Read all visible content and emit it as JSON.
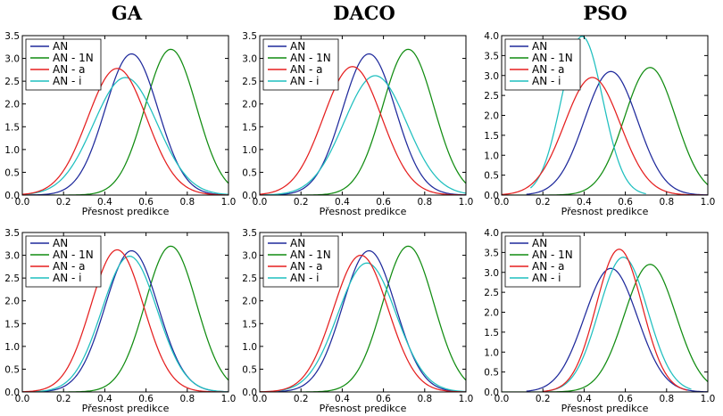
{
  "figure": {
    "column_titles": [
      "GA",
      "DACO",
      "PSO"
    ]
  },
  "chart_data": [
    {
      "type": "line",
      "column": 0,
      "row": 0,
      "xlabel": "Přesnost predikce",
      "xlim": [
        0.0,
        1.0
      ],
      "ylim": [
        0.0,
        3.5
      ],
      "xticks": [
        "0.0",
        "0.2",
        "0.4",
        "0.6",
        "0.8",
        "1.0"
      ],
      "yticks": [
        "0.0",
        "0.5",
        "1.0",
        "1.5",
        "2.0",
        "2.5",
        "3.0",
        "3.5"
      ],
      "legend_position": "top-left",
      "grid": false,
      "series": [
        {
          "name": "AN",
          "color": "#1f2a9c",
          "peak_x": 0.53,
          "peak_y": 3.1,
          "x_range": [
            0.0,
            1.0
          ]
        },
        {
          "name": "AN - 1N",
          "color": "#118c11",
          "peak_x": 0.72,
          "peak_y": 3.2,
          "x_range": [
            0.0,
            1.0
          ]
        },
        {
          "name": "AN - a",
          "color": "#e51f1f",
          "peak_x": 0.46,
          "peak_y": 2.78,
          "x_range": [
            0.0,
            1.0
          ]
        },
        {
          "name": "AN - i",
          "color": "#1fbfbf",
          "peak_x": 0.5,
          "peak_y": 2.58,
          "x_range": [
            0.0,
            1.0
          ]
        }
      ]
    },
    {
      "type": "line",
      "column": 1,
      "row": 0,
      "xlabel": "Přesnost predikce",
      "xlim": [
        0.0,
        1.0
      ],
      "ylim": [
        0.0,
        3.5
      ],
      "xticks": [
        "0.0",
        "0.2",
        "0.4",
        "0.6",
        "0.8",
        "1.0"
      ],
      "yticks": [
        "0.0",
        "0.5",
        "1.0",
        "1.5",
        "2.0",
        "2.5",
        "3.0",
        "3.5"
      ],
      "legend_position": "top-left",
      "grid": false,
      "series": [
        {
          "name": "AN",
          "color": "#1f2a9c",
          "peak_x": 0.53,
          "peak_y": 3.1,
          "x_range": [
            0.0,
            1.0
          ]
        },
        {
          "name": "AN - 1N",
          "color": "#118c11",
          "peak_x": 0.72,
          "peak_y": 3.2,
          "x_range": [
            0.0,
            1.0
          ]
        },
        {
          "name": "AN - a",
          "color": "#e51f1f",
          "peak_x": 0.45,
          "peak_y": 2.82,
          "x_range": [
            0.0,
            1.0
          ]
        },
        {
          "name": "AN - i",
          "color": "#1fbfbf",
          "peak_x": 0.56,
          "peak_y": 2.62,
          "x_range": [
            0.0,
            1.0
          ]
        }
      ]
    },
    {
      "type": "line",
      "column": 2,
      "row": 0,
      "xlabel": "Přesnost predikce",
      "xlim": [
        0.0,
        1.0
      ],
      "ylim": [
        0.0,
        4.0
      ],
      "xticks": [
        "0.0",
        "0.2",
        "0.4",
        "0.6",
        "0.8",
        "1.0"
      ],
      "yticks": [
        "0.0",
        "0.5",
        "1.0",
        "1.5",
        "2.0",
        "2.5",
        "3.0",
        "3.5",
        "4.0"
      ],
      "legend_position": "top-left",
      "grid": false,
      "series": [
        {
          "name": "AN",
          "color": "#1f2a9c",
          "peak_x": 0.53,
          "peak_y": 3.1,
          "x_range": [
            0.12,
            1.0
          ]
        },
        {
          "name": "AN - 1N",
          "color": "#118c11",
          "peak_x": 0.72,
          "peak_y": 3.2,
          "x_range": [
            0.0,
            1.0
          ]
        },
        {
          "name": "AN - a",
          "color": "#e51f1f",
          "peak_x": 0.44,
          "peak_y": 2.95,
          "x_range": [
            0.0,
            1.0
          ]
        },
        {
          "name": "AN - i",
          "color": "#1fbfbf",
          "peak_x": 0.39,
          "peak_y": 3.98,
          "x_range": [
            0.14,
            0.7
          ]
        }
      ]
    },
    {
      "type": "line",
      "column": 0,
      "row": 1,
      "xlabel": "Přesnost predikce",
      "xlim": [
        0.0,
        1.0
      ],
      "ylim": [
        0.0,
        3.5
      ],
      "xticks": [
        "0.0",
        "0.2",
        "0.4",
        "0.6",
        "0.8",
        "1.0"
      ],
      "yticks": [
        "0.0",
        "0.5",
        "1.0",
        "1.5",
        "2.0",
        "2.5",
        "3.0",
        "3.5"
      ],
      "legend_position": "top-left",
      "grid": false,
      "series": [
        {
          "name": "AN",
          "color": "#1f2a9c",
          "peak_x": 0.53,
          "peak_y": 3.1,
          "x_range": [
            0.0,
            1.0
          ]
        },
        {
          "name": "AN - 1N",
          "color": "#118c11",
          "peak_x": 0.72,
          "peak_y": 3.2,
          "x_range": [
            0.0,
            1.0
          ]
        },
        {
          "name": "AN - a",
          "color": "#e51f1f",
          "peak_x": 0.46,
          "peak_y": 3.12,
          "x_range": [
            0.0,
            1.0
          ]
        },
        {
          "name": "AN - i",
          "color": "#1fbfbf",
          "peak_x": 0.52,
          "peak_y": 2.98,
          "x_range": [
            0.0,
            1.0
          ]
        }
      ]
    },
    {
      "type": "line",
      "column": 1,
      "row": 1,
      "xlabel": "Přesnost predikce",
      "xlim": [
        0.0,
        1.0
      ],
      "ylim": [
        0.0,
        3.5
      ],
      "xticks": [
        "0.0",
        "0.2",
        "0.4",
        "0.6",
        "0.8",
        "1.0"
      ],
      "yticks": [
        "0.0",
        "0.5",
        "1.0",
        "1.5",
        "2.0",
        "2.5",
        "3.0",
        "3.5"
      ],
      "legend_position": "top-left",
      "grid": false,
      "series": [
        {
          "name": "AN",
          "color": "#1f2a9c",
          "peak_x": 0.53,
          "peak_y": 3.1,
          "x_range": [
            0.0,
            1.0
          ]
        },
        {
          "name": "AN - 1N",
          "color": "#118c11",
          "peak_x": 0.72,
          "peak_y": 3.2,
          "x_range": [
            0.0,
            1.0
          ]
        },
        {
          "name": "AN - a",
          "color": "#e51f1f",
          "peak_x": 0.49,
          "peak_y": 3.0,
          "x_range": [
            0.0,
            1.0
          ]
        },
        {
          "name": "AN - i",
          "color": "#1fbfbf",
          "peak_x": 0.52,
          "peak_y": 2.83,
          "x_range": [
            0.0,
            1.0
          ]
        }
      ]
    },
    {
      "type": "line",
      "column": 2,
      "row": 1,
      "xlabel": "Přesnost predikce",
      "xlim": [
        0.0,
        1.0
      ],
      "ylim": [
        0.0,
        4.0
      ],
      "xticks": [
        "0.0",
        "0.2",
        "0.4",
        "0.6",
        "0.8",
        "1.0"
      ],
      "yticks": [
        "0.0",
        "0.5",
        "1.0",
        "1.5",
        "2.0",
        "2.5",
        "3.0",
        "3.5",
        "4.0"
      ],
      "legend_position": "top-left",
      "grid": false,
      "series": [
        {
          "name": "AN",
          "color": "#1f2a9c",
          "peak_x": 0.53,
          "peak_y": 3.1,
          "x_range": [
            0.12,
            1.0
          ]
        },
        {
          "name": "AN - 1N",
          "color": "#118c11",
          "peak_x": 0.72,
          "peak_y": 3.2,
          "x_range": [
            0.0,
            1.0
          ]
        },
        {
          "name": "AN - a",
          "color": "#e51f1f",
          "peak_x": 0.57,
          "peak_y": 3.58,
          "x_range": [
            0.2,
            0.9
          ]
        },
        {
          "name": "AN - i",
          "color": "#1fbfbf",
          "peak_x": 0.59,
          "peak_y": 3.38,
          "x_range": [
            0.2,
            0.92
          ]
        }
      ]
    }
  ]
}
